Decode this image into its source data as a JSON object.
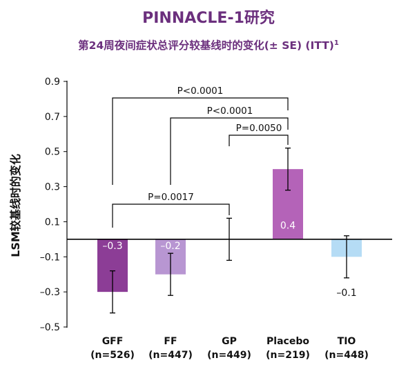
{
  "header": {
    "title": "PINNACLE-1研究",
    "subtitle": "第24周夜间症状总评分较基线时的变化(± SE) (ITT)",
    "subtitle_sup": "1"
  },
  "chart_data": {
    "type": "bar",
    "title": "PINNACLE-1研究",
    "subtitle": "第24周夜间症状总评分较基线时的变化(± SE) (ITT)",
    "ylabel": "LSM较基线时的变化",
    "ylim": [
      -0.5,
      0.9
    ],
    "yticks": [
      "-0.5",
      "-0.3",
      "-0.1",
      "0.1",
      "0.3",
      "0.5",
      "0.7",
      "0.9"
    ],
    "yticks_display": [
      "–0.5",
      "–0.3",
      "–0.1",
      "0.1",
      "0.3",
      "0.5",
      "0.7",
      "0.9"
    ],
    "categories": [
      "GFF",
      "FF",
      "GP",
      "Placebo",
      "TIO"
    ],
    "category_n": [
      "(n=526)",
      "(n=447)",
      "(n=449)",
      "(n=219)",
      "(n=448)"
    ],
    "values": [
      -0.3,
      -0.2,
      0.0,
      0.4,
      -0.1
    ],
    "value_labels": [
      "–0.3",
      "–0.2",
      "",
      "0.4",
      "–0.1"
    ],
    "error_bars": [
      {
        "low": -0.42,
        "high": -0.18
      },
      {
        "low": -0.32,
        "high": -0.08
      },
      {
        "low": -0.12,
        "high": 0.12
      },
      {
        "low": 0.28,
        "high": 0.52
      },
      {
        "low": -0.22,
        "high": 0.02
      }
    ],
    "colors": [
      "#8c3d96",
      "#b896d2",
      "#ffffff",
      "#b463b8",
      "#b5dcf5"
    ],
    "significance": [
      {
        "from": 0,
        "to": 3,
        "label": "P<0.0001"
      },
      {
        "from": 1,
        "to": 3,
        "label": "P<0.0001"
      },
      {
        "from": 2,
        "to": 3,
        "label": "P=0.0050"
      },
      {
        "from": 0,
        "to": 2,
        "label": "P=0.0017"
      }
    ],
    "grid": false,
    "legend": "none"
  }
}
